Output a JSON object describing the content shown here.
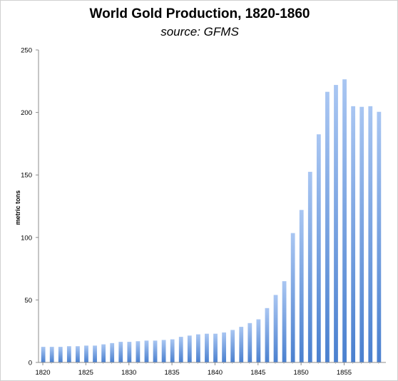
{
  "colors": {
    "bar_top": "#a9c6f2",
    "bar_bottom": "#4a80cf",
    "axis": "#8c8c8c"
  },
  "chart_data": {
    "type": "bar",
    "title": "World Gold Production, 1820-1860",
    "subtitle": "source: GFMS",
    "xlabel": "",
    "ylabel": "metric tons",
    "ylim": [
      0,
      250
    ],
    "yticks": [
      0,
      50,
      100,
      150,
      200,
      250
    ],
    "xticks": [
      "1820",
      "1825",
      "1830",
      "1835",
      "1840",
      "1845",
      "1850",
      "1855"
    ],
    "grid": false,
    "legend": "none",
    "categories": [
      "1820",
      "1821",
      "1822",
      "1823",
      "1824",
      "1825",
      "1826",
      "1827",
      "1828",
      "1829",
      "1830",
      "1831",
      "1832",
      "1833",
      "1834",
      "1835",
      "1836",
      "1837",
      "1838",
      "1839",
      "1840",
      "1841",
      "1842",
      "1843",
      "1844",
      "1845",
      "1846",
      "1847",
      "1848",
      "1849",
      "1850",
      "1851",
      "1852",
      "1853",
      "1854",
      "1855",
      "1856",
      "1857",
      "1858",
      "1859"
    ],
    "values": [
      12.5,
      12.5,
      12.5,
      13,
      13,
      13.5,
      13.5,
      14.5,
      15.5,
      16.5,
      16.5,
      17,
      17.5,
      17.5,
      18,
      18.5,
      20.5,
      21.5,
      22.5,
      23,
      23,
      24,
      26,
      28.5,
      31.5,
      34.5,
      43.5,
      54,
      65,
      103.5,
      122,
      152.5,
      182.5,
      216.5,
      222,
      226.5,
      205,
      204.5,
      205,
      200.5
    ]
  }
}
